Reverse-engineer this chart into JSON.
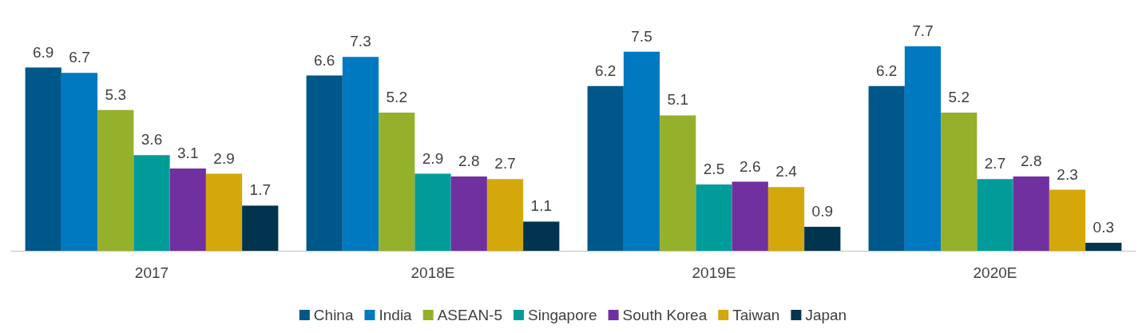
{
  "chart_data": {
    "type": "bar",
    "categories": [
      "2017",
      "2018E",
      "2019E",
      "2020E"
    ],
    "series": [
      {
        "name": "China",
        "color": "#00578a",
        "values": [
          6.9,
          6.6,
          6.2,
          6.2
        ]
      },
      {
        "name": "India",
        "color": "#0079c1",
        "values": [
          6.7,
          7.3,
          7.5,
          7.7
        ]
      },
      {
        "name": "ASEAN-5",
        "color": "#95b02a",
        "values": [
          5.3,
          5.2,
          5.1,
          5.2
        ]
      },
      {
        "name": "Singapore",
        "color": "#009c9a",
        "values": [
          3.6,
          2.9,
          2.5,
          2.7
        ]
      },
      {
        "name": "South Korea",
        "color": "#7030a0",
        "values": [
          3.1,
          2.8,
          2.6,
          2.8
        ]
      },
      {
        "name": "Taiwan",
        "color": "#d4a80b",
        "values": [
          2.9,
          2.7,
          2.4,
          2.3
        ]
      },
      {
        "name": "Japan",
        "color": "#00344f",
        "values": [
          1.7,
          1.1,
          0.9,
          0.3
        ]
      }
    ],
    "data_labels": true,
    "legend": "bottom"
  }
}
